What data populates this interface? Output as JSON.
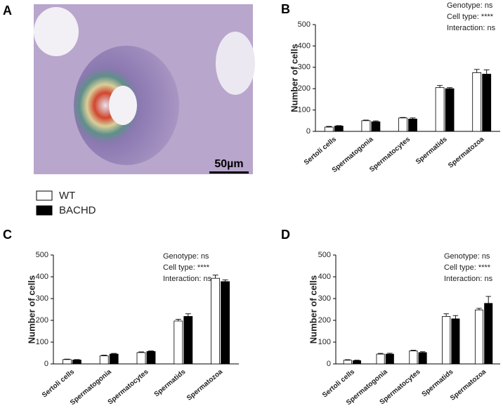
{
  "image": {
    "label": "A",
    "scale_bar": "50µm"
  },
  "chart_data": [
    {
      "type": "bar",
      "label": "B",
      "ylabel": "Number of cells",
      "annotations": [
        "Genotype: ns",
        "Cell type: ****",
        "Interaction: ns"
      ],
      "categories": [
        "Sertoli cells",
        "Spermatogonia",
        "Spermatocytes",
        "Spermatids",
        "Spermatozoa"
      ],
      "series": [
        {
          "name": "WT",
          "color": "#ffffff",
          "values": [
            20,
            50,
            63,
            205,
            275
          ],
          "errors": [
            3,
            3,
            2,
            10,
            15
          ]
        },
        {
          "name": "BACHD",
          "color": "#000000",
          "values": [
            25,
            45,
            58,
            200,
            268
          ],
          "errors": [
            2,
            4,
            5,
            5,
            20
          ]
        }
      ],
      "ylim": [
        0,
        500
      ],
      "yticks": [
        0,
        100,
        200,
        300,
        400,
        500
      ]
    },
    {
      "type": "bar",
      "label": "C",
      "ylabel": "Number of cells",
      "annotations": [
        "Genotype: ns",
        "Cell type: ****",
        "Interaction: ns"
      ],
      "categories": [
        "Sertoli cells",
        "Spermatogonia",
        "Spermatocytes",
        "Spermatids",
        "Spermatozoa"
      ],
      "series": [
        {
          "color": "#ffffff",
          "values": [
            20,
            37,
            52,
            197,
            393
          ],
          "errors": [
            2,
            3,
            3,
            8,
            15
          ]
        },
        {
          "color": "#000000",
          "values": [
            18,
            45,
            57,
            218,
            378
          ],
          "errors": [
            2,
            3,
            3,
            12,
            8
          ]
        }
      ],
      "ylim": [
        0,
        500
      ],
      "yticks": [
        0,
        100,
        200,
        300,
        400,
        500
      ]
    },
    {
      "type": "bar",
      "label": "D",
      "ylabel": "Number of cells",
      "annotations": [
        "Genotype: ns",
        "Cell type: ****",
        "Interaction: ns"
      ],
      "categories": [
        "Sertoli cells",
        "Spermatogonia",
        "Spermatocytes",
        "Spermatids",
        "Spermatozoa"
      ],
      "series": [
        {
          "color": "#ffffff",
          "values": [
            17,
            45,
            60,
            218,
            248
          ],
          "errors": [
            2,
            3,
            3,
            12,
            7
          ]
        },
        {
          "color": "#000000",
          "values": [
            15,
            45,
            52,
            207,
            278
          ],
          "errors": [
            2,
            4,
            4,
            15,
            32
          ]
        }
      ],
      "ylim": [
        0,
        500
      ],
      "yticks": [
        0,
        100,
        200,
        300,
        400,
        500
      ]
    }
  ]
}
